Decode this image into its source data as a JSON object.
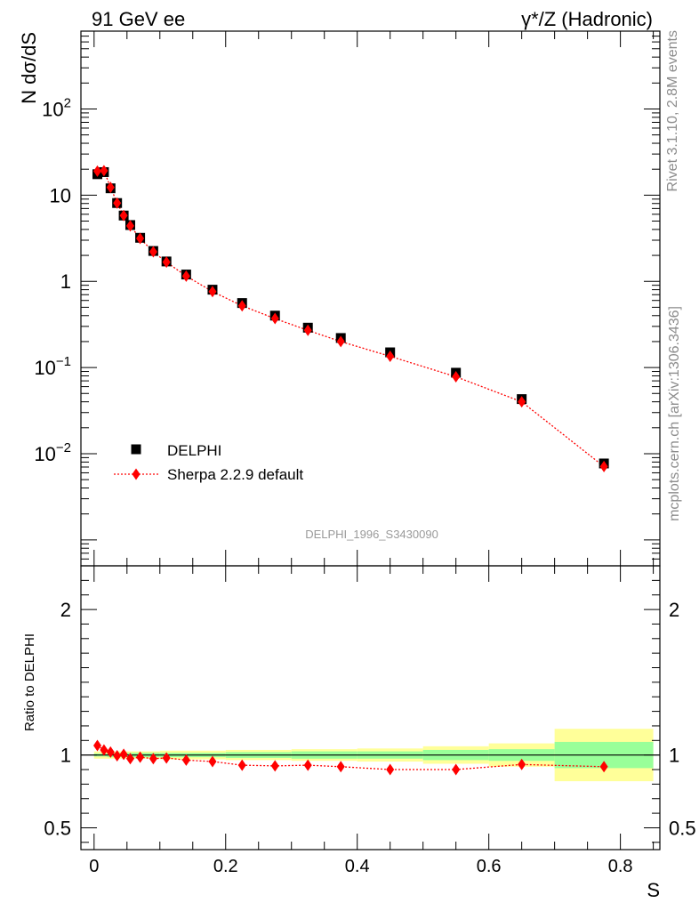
{
  "header": {
    "left": "91 GeV ee",
    "right": "γ*/Z (Hadronic)"
  },
  "side_text": {
    "rivet": "Rivet 3.1.10,  2.8M events",
    "mcplots": "mcplots.cern.ch [arXiv:1306.3436]"
  },
  "watermark": "DELPHI_1996_S3430090",
  "chart_data": [
    {
      "type": "scatter",
      "panel": "main",
      "ylabel": "N dσ/dS",
      "yscale": "log",
      "xlim": [
        -0.02,
        0.86
      ],
      "ylim": [
        0.0005,
        800
      ],
      "y_ticks": [
        {
          "value": 0.01,
          "label": "10",
          "exp": "−2"
        },
        {
          "value": 0.1,
          "label": "10",
          "exp": "−1"
        },
        {
          "value": 1,
          "label": "1",
          "exp": ""
        },
        {
          "value": 10,
          "label": "10",
          "exp": ""
        },
        {
          "value": 100,
          "label": "10",
          "exp": "2"
        }
      ],
      "legend": {
        "position": "lower-left",
        "entries": [
          "DELPHI",
          "Sherpa 2.2.9 default"
        ]
      },
      "series": [
        {
          "name": "DELPHI",
          "marker": "square",
          "color": "#000000",
          "x": [
            0.005,
            0.015,
            0.025,
            0.035,
            0.045,
            0.055,
            0.07,
            0.09,
            0.11,
            0.14,
            0.18,
            0.225,
            0.275,
            0.325,
            0.375,
            0.45,
            0.55,
            0.65,
            0.775
          ],
          "y": [
            17.5,
            18.5,
            12.0,
            8.1,
            5.8,
            4.5,
            3.2,
            2.25,
            1.7,
            1.2,
            0.8,
            0.56,
            0.4,
            0.29,
            0.22,
            0.15,
            0.087,
            0.043,
            0.0077
          ]
        },
        {
          "name": "Sherpa 2.2.9 default",
          "marker": "diamond",
          "line": "dotted",
          "color": "#ff0000",
          "x": [
            0.005,
            0.015,
            0.025,
            0.035,
            0.045,
            0.055,
            0.07,
            0.09,
            0.11,
            0.14,
            0.18,
            0.225,
            0.275,
            0.325,
            0.375,
            0.45,
            0.55,
            0.65,
            0.775
          ],
          "y": [
            19.0,
            19.2,
            12.3,
            8.1,
            5.8,
            4.4,
            3.15,
            2.2,
            1.67,
            1.15,
            0.76,
            0.52,
            0.37,
            0.27,
            0.2,
            0.135,
            0.078,
            0.04,
            0.0071
          ]
        }
      ]
    },
    {
      "type": "scatter",
      "panel": "ratio",
      "ylabel": "Ratio to DELPHI",
      "xlabel": "S",
      "xlim": [
        -0.02,
        0.86
      ],
      "ylim": [
        0.35,
        2.3
      ],
      "x_ticks": [
        {
          "value": 0,
          "label": "0"
        },
        {
          "value": 0.2,
          "label": "0.2"
        },
        {
          "value": 0.4,
          "label": "0.4"
        },
        {
          "value": 0.6,
          "label": "0.6"
        },
        {
          "value": 0.8,
          "label": "0.8"
        }
      ],
      "y_ticks": [
        {
          "value": 0.5,
          "label": "0.5"
        },
        {
          "value": 1,
          "label": "1"
        },
        {
          "value": 2,
          "label": "2"
        }
      ],
      "bands": {
        "colors": {
          "outer": "#ffff99",
          "inner": "#99ff99"
        },
        "bins": [
          {
            "x0": 0.0,
            "x1": 0.02,
            "outer": [
              0.975,
              1.025
            ],
            "inner": [
              0.99,
              1.01
            ]
          },
          {
            "x0": 0.02,
            "x1": 0.1,
            "outer": [
              0.975,
              1.025
            ],
            "inner": [
              0.985,
              1.015
            ]
          },
          {
            "x0": 0.1,
            "x1": 0.2,
            "outer": [
              0.97,
              1.03
            ],
            "inner": [
              0.985,
              1.015
            ]
          },
          {
            "x0": 0.2,
            "x1": 0.3,
            "outer": [
              0.965,
              1.035
            ],
            "inner": [
              0.98,
              1.02
            ]
          },
          {
            "x0": 0.3,
            "x1": 0.4,
            "outer": [
              0.96,
              1.04
            ],
            "inner": [
              0.975,
              1.025
            ]
          },
          {
            "x0": 0.4,
            "x1": 0.5,
            "outer": [
              0.955,
              1.045
            ],
            "inner": [
              0.975,
              1.025
            ]
          },
          {
            "x0": 0.5,
            "x1": 0.6,
            "outer": [
              0.94,
              1.06
            ],
            "inner": [
              0.965,
              1.035
            ]
          },
          {
            "x0": 0.6,
            "x1": 0.7,
            "outer": [
              0.92,
              1.08
            ],
            "inner": [
              0.96,
              1.04
            ]
          },
          {
            "x0": 0.7,
            "x1": 0.85,
            "outer": [
              0.82,
              1.18
            ],
            "inner": [
              0.91,
              1.09
            ]
          }
        ]
      },
      "series": [
        {
          "name": "Sherpa 2.2.9 default",
          "marker": "diamond",
          "line": "dotted",
          "color": "#ff0000",
          "x": [
            0.005,
            0.015,
            0.025,
            0.035,
            0.045,
            0.055,
            0.07,
            0.09,
            0.11,
            0.14,
            0.18,
            0.225,
            0.275,
            0.325,
            0.375,
            0.45,
            0.55,
            0.65,
            0.775
          ],
          "y": [
            1.065,
            1.035,
            1.02,
            0.995,
            1.005,
            0.975,
            0.985,
            0.975,
            0.98,
            0.965,
            0.955,
            0.93,
            0.925,
            0.93,
            0.92,
            0.9,
            0.9,
            0.935,
            0.92
          ]
        }
      ]
    }
  ]
}
